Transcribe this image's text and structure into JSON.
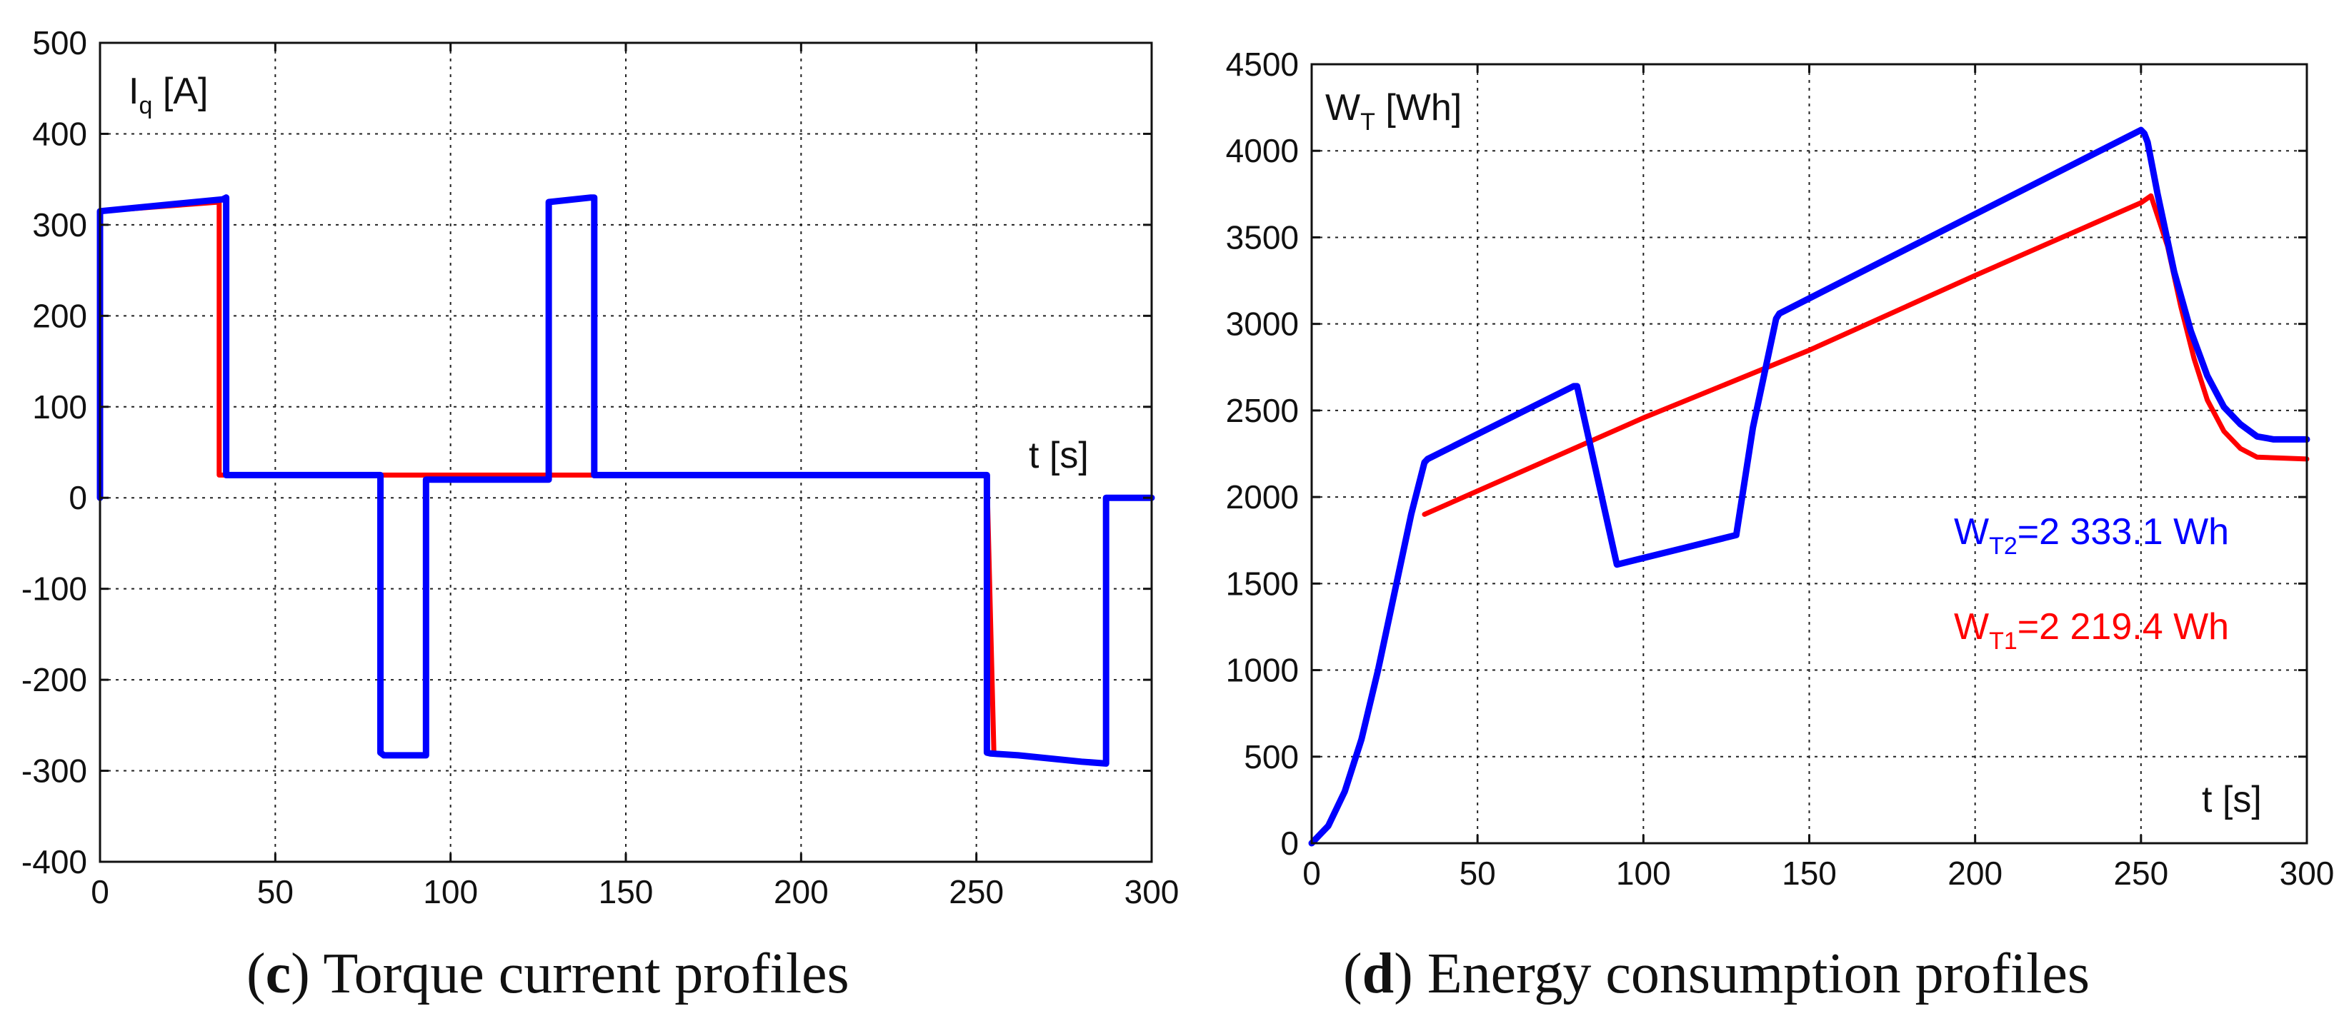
{
  "chart_data": [
    {
      "type": "line",
      "panel_id": "c",
      "caption_letter": "c",
      "caption_text": " Torque current profiles",
      "title": "",
      "ylabel_main": "I",
      "ylabel_sub": "q",
      "ylabel_unit": " [A]",
      "xlabel": "t [s]",
      "xlim": [
        0,
        300
      ],
      "ylim": [
        -400,
        500
      ],
      "xticks": [
        0,
        50,
        100,
        150,
        200,
        250,
        300
      ],
      "yticks": [
        -400,
        -300,
        -200,
        -100,
        0,
        100,
        200,
        300,
        400,
        500
      ],
      "xtick_labels": [
        "0",
        "50",
        "100",
        "150",
        "200",
        "250",
        "300"
      ],
      "ytick_labels": [
        "-400",
        "-300",
        "-200",
        "-100",
        "0",
        "100",
        "200",
        "300",
        "400",
        "500"
      ],
      "grid": true,
      "series": [
        {
          "name": "red",
          "color": "#ff0000",
          "x": [
            0,
            0,
            34,
            34,
            80,
            80,
            253,
            253,
            255
          ],
          "y": [
            0,
            315,
            325,
            25,
            25,
            25,
            25,
            25,
            -280
          ]
        },
        {
          "name": "blue",
          "color": "#0000ff",
          "x": [
            0,
            0,
            35,
            36,
            36,
            80,
            80,
            81,
            93,
            93,
            128,
            128,
            140,
            141,
            141,
            253,
            253,
            254,
            262,
            280,
            287,
            287,
            300
          ],
          "y": [
            0,
            315,
            328,
            330,
            25,
            25,
            -280,
            -283,
            -283,
            20,
            20,
            325,
            330,
            330,
            25,
            25,
            -280,
            -281,
            -283,
            -290,
            -292,
            0,
            0
          ]
        }
      ],
      "annotations": []
    },
    {
      "type": "line",
      "panel_id": "d",
      "caption_letter": "d",
      "caption_text": " Energy consumption profiles",
      "title": "",
      "ylabel_main": "W",
      "ylabel_sub": "T",
      "ylabel_unit": " [Wh]",
      "xlabel": "t [s]",
      "xlim": [
        0,
        300
      ],
      "ylim": [
        0,
        4500
      ],
      "xticks": [
        0,
        50,
        100,
        150,
        200,
        250,
        300
      ],
      "yticks": [
        0,
        500,
        1000,
        1500,
        2000,
        2500,
        3000,
        3500,
        4000,
        4500
      ],
      "xtick_labels": [
        "0",
        "50",
        "100",
        "150",
        "200",
        "250",
        "300"
      ],
      "ytick_labels": [
        "0",
        "500",
        "1000",
        "1500",
        "2000",
        "2500",
        "3000",
        "3500",
        "4000",
        "4500"
      ],
      "grid": true,
      "series": [
        {
          "name": "red",
          "color": "#ff0000",
          "x": [
            34,
            100,
            150,
            200,
            250,
            253,
            258,
            262,
            266,
            270,
            275,
            280,
            285,
            300
          ],
          "y": [
            1900,
            2457,
            2848,
            3280,
            3700,
            3740,
            3450,
            3100,
            2800,
            2560,
            2380,
            2280,
            2230,
            2219.4
          ]
        },
        {
          "name": "blue",
          "color": "#0000ff",
          "x": [
            0,
            5,
            10,
            15,
            20,
            25,
            30,
            34,
            35,
            79,
            80,
            92,
            128,
            133,
            140,
            141,
            250,
            251,
            252,
            255,
            260,
            265,
            270,
            275,
            280,
            285,
            290,
            300
          ],
          "y": [
            0,
            100,
            300,
            600,
            1000,
            1450,
            1900,
            2200,
            2220,
            2640,
            2640,
            1610,
            1780,
            2400,
            3030,
            3060,
            4120,
            4100,
            4050,
            3750,
            3300,
            2960,
            2700,
            2520,
            2420,
            2350,
            2333.1,
            2333.1
          ]
        }
      ],
      "annotations": [
        {
          "id": "wt2",
          "color": "#0000ff",
          "main": "W",
          "sub": "T2",
          "rest": "=2 333.1 Wh"
        },
        {
          "id": "wt1",
          "color": "#ff0000",
          "main": "W",
          "sub": "T1",
          "rest": "=2 219.4 Wh"
        }
      ]
    }
  ]
}
